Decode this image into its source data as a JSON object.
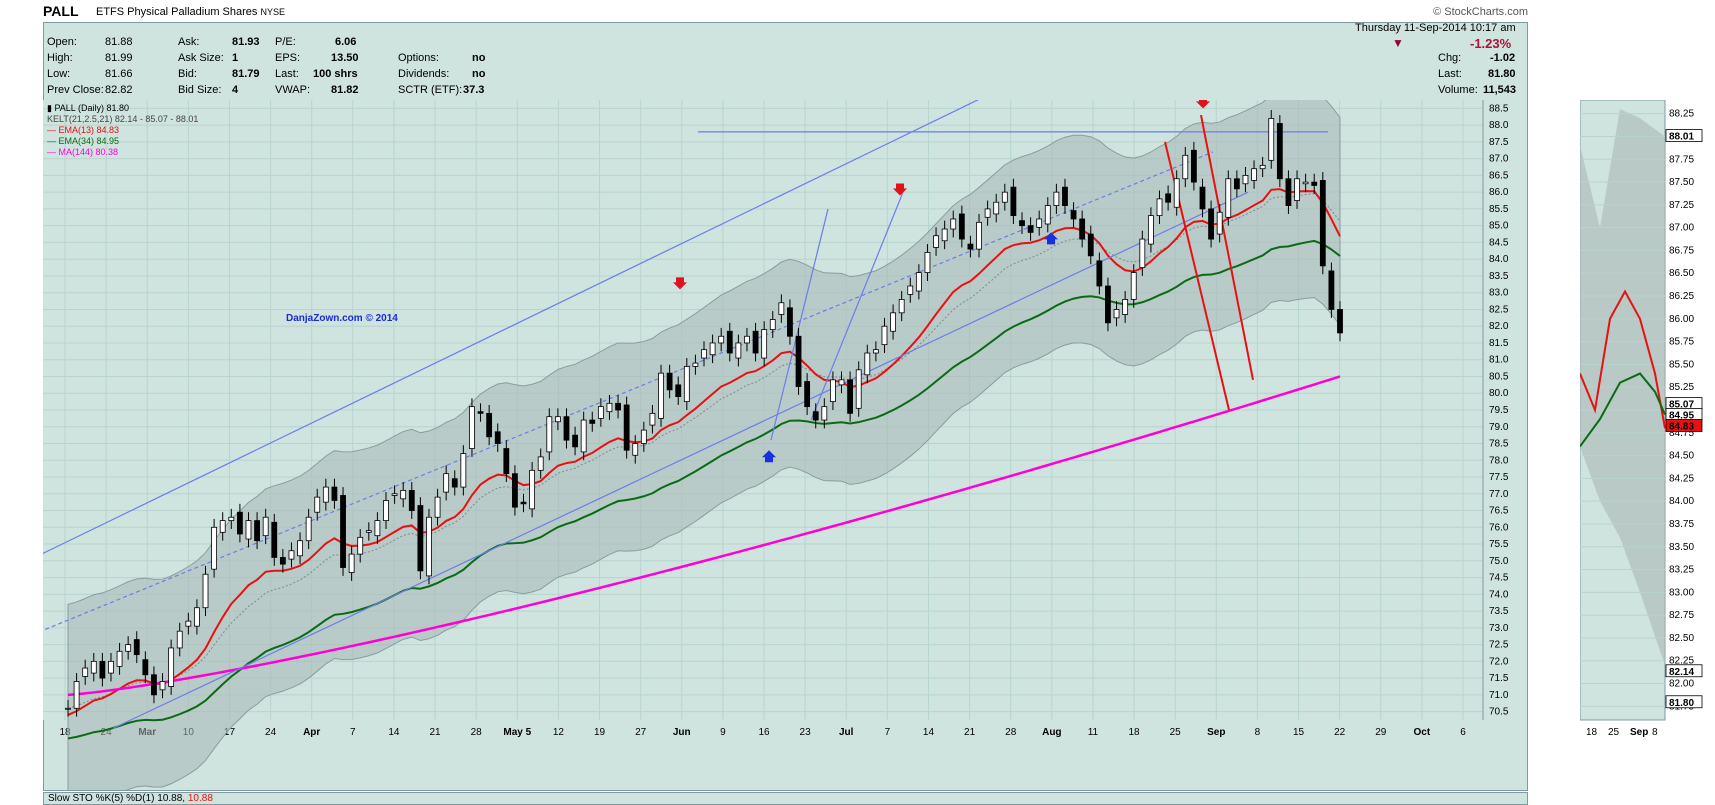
{
  "header": {
    "symbol": "PALL",
    "name": "ETFS Physical Palladium Shares",
    "exchange": "NYSE",
    "logo": "© StockCharts.com",
    "datetime": "Thursday  11-Sep-2014  10:17 am"
  },
  "quote": {
    "open_label": "Open:",
    "open": "81.88",
    "high_label": "High:",
    "high": "81.99",
    "low_label": "Low:",
    "low": "81.66",
    "prev_close_label": "Prev Close:",
    "prev_close": "82.82",
    "ask_label": "Ask:",
    "ask": "81.93",
    "ask_size_label": "Ask Size:",
    "ask_size": "1",
    "bid_label": "Bid:",
    "bid": "81.79",
    "bid_size_label": "Bid Size:",
    "bid_size": "4",
    "pe_label": "P/E:",
    "pe": "6.06",
    "eps_label": "EPS:",
    "eps": "13.50",
    "last_trade_label": "Last:",
    "last_trade": "100 shrs",
    "vwap_label": "VWAP:",
    "vwap": "81.82",
    "options_label": "Options:",
    "options": "no",
    "dividends_label": "Dividends:",
    "dividends": "no",
    "sctr_label": "SCTR (ETF):",
    "sctr": "37.3",
    "pct_change": "-1.23%",
    "chg_label": "Chg:",
    "chg": "-1.02",
    "last_label": "Last:",
    "last": "81.80",
    "volume_label": "Volume:",
    "volume": "11,543"
  },
  "legend": {
    "price": "PALL (Daily) 81.80",
    "kelt": "KELT(21,2.5,21) 82.14 - 85.07 - 88.01",
    "ema13": "EMA(13) 84.83",
    "ema34": "EMA(34) 84.95",
    "ma144": "MA(144) 80.38"
  },
  "watermark": "DanjaZown.com © 2014",
  "stoch_label": "Slow STO %K(5) %D(1) 10.88, ",
  "stoch_value": "10.88",
  "colors": {
    "panel": "#cfe3df",
    "grid": "#b8d3ce",
    "trend": "#6a7de8",
    "ema13": "#e81010",
    "ema34": "#0a6b14",
    "ma144": "#ff00d4",
    "channel": "#8a9c9e",
    "down_arrow": "#e0121b",
    "up_arrow": "#1830e0"
  },
  "chart_data": {
    "type": "candlestick",
    "y_axis": {
      "ylim": [
        70.25,
        88.75
      ],
      "ticks": [
        "70.5",
        "71.0",
        "71.5",
        "72.0",
        "72.5",
        "73.0",
        "73.5",
        "74.0",
        "74.5",
        "75.0",
        "75.5",
        "76.0",
        "76.5",
        "77.0",
        "77.5",
        "78.0",
        "78.5",
        "79.0",
        "79.5",
        "80.0",
        "80.5",
        "81.0",
        "81.5",
        "82.0",
        "82.5",
        "83.0",
        "83.5",
        "84.0",
        "84.5",
        "85.0",
        "85.5",
        "86.0",
        "86.5",
        "87.0",
        "87.5",
        "88.0",
        "88.5"
      ]
    },
    "x_ticks": [
      "18",
      "24",
      "Mar",
      "10",
      "17",
      "24",
      "Apr",
      "7",
      "14",
      "21",
      "28",
      "May 5",
      "12",
      "19",
      "27",
      "Jun",
      "9",
      "16",
      "23",
      "Jul",
      "7",
      "14",
      "21",
      "28",
      "Aug",
      "11",
      "18",
      "25",
      "Sep",
      "8",
      "15",
      "22",
      "29",
      "Oct",
      "6"
    ],
    "closes": [
      70.6,
      71.4,
      71.8,
      72.0,
      71.5,
      72.0,
      72.3,
      72.5,
      72.2,
      71.6,
      71.0,
      71.4,
      72.4,
      72.9,
      73.2,
      73.6,
      74.6,
      76.0,
      76.2,
      76.3,
      75.8,
      76.2,
      75.6,
      76.3,
      75.1,
      74.9,
      75.3,
      75.6,
      76.3,
      76.9,
      77.2,
      76.8,
      74.8,
      75.2,
      75.7,
      75.9,
      76.2,
      76.8,
      77.0,
      77.1,
      76.5,
      74.7,
      76.3,
      76.9,
      77.6,
      77.2,
      78.2,
      79.6,
      79.4,
      78.7,
      78.5,
      77.6,
      76.6,
      76.7,
      77.7,
      78.1,
      79.3,
      79.3,
      78.6,
      78.4,
      79.2,
      79.1,
      79.6,
      79.7,
      79.5,
      78.3,
      78.5,
      78.9,
      79.4,
      80.6,
      80.1,
      79.9,
      80.8,
      80.9,
      81.3,
      81.5,
      81.7,
      81.2,
      81.5,
      81.7,
      81.2,
      81.9,
      82.2,
      82.7,
      81.7,
      80.2,
      79.6,
      79.2,
      79.6,
      80.4,
      80.4,
      79.4,
      80.7,
      81.2,
      81.3,
      82.0,
      82.4,
      82.8,
      83.2,
      83.6,
      84.2,
      84.7,
      84.9,
      85.2,
      84.6,
      84.3,
      85.1,
      85.5,
      85.7,
      86.0,
      85.3,
      85.0,
      84.8,
      85.2,
      85.6,
      86.0,
      85.6,
      85.2,
      84.6,
      84.1,
      83.2,
      82.1,
      82.5,
      82.8,
      83.6,
      84.6,
      85.3,
      85.8,
      85.7,
      86.4,
      87.1,
      86.3,
      85.5,
      84.6,
      85.4,
      86.4,
      86.1,
      86.5,
      86.7,
      86.8,
      88.2,
      86.4,
      85.6,
      86.4,
      86.3,
      86.2,
      83.8,
      82.5,
      81.8
    ],
    "channels": [
      "upper blue trend line",
      "mid dashed trend line",
      "lower blue trend line",
      "horizontal resistance 87.8",
      "red falling channel"
    ]
  },
  "mini": {
    "ticks": [
      "88.25",
      "88.00",
      "87.75",
      "87.50",
      "87.25",
      "87.00",
      "86.75",
      "86.50",
      "86.25",
      "86.00",
      "85.75",
      "85.50",
      "85.25",
      "85.00",
      "84.75",
      "84.50",
      "84.25",
      "84.00",
      "83.75",
      "83.50",
      "83.25",
      "83.00",
      "82.75",
      "82.50",
      "82.25",
      "82.00",
      "81.75"
    ],
    "ylim": [
      81.6,
      88.4
    ],
    "flags": [
      {
        "value": 88.01,
        "label": "88.01",
        "color": "#ffffff"
      },
      {
        "value": 85.07,
        "label": "85.07",
        "color": "#ffffff"
      },
      {
        "value": 84.95,
        "label": "84.95",
        "color": "#ffffff"
      },
      {
        "value": 84.83,
        "label": "84.83",
        "color": "#e81010"
      },
      {
        "value": 82.14,
        "label": "82.14",
        "color": "#ffffff"
      },
      {
        "value": 81.8,
        "label": "81.80",
        "color": "#ffffff"
      }
    ],
    "x_ticks": [
      "18",
      "25",
      "Sep",
      "8"
    ]
  }
}
